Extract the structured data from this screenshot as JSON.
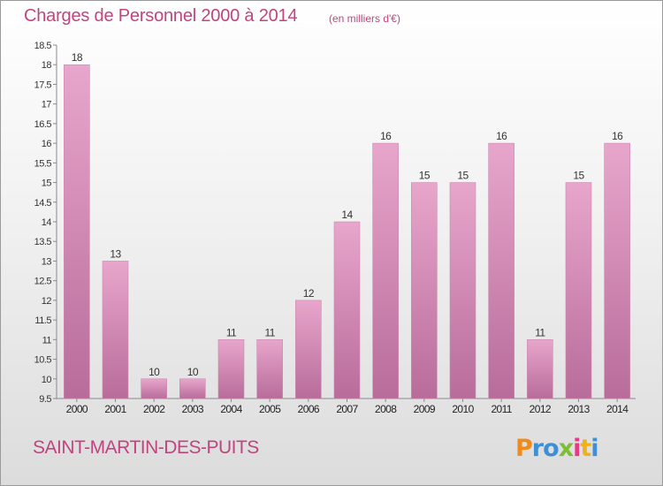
{
  "header": {
    "title": "Charges de Personnel 2000 à 2014",
    "subtitle": "(en milliers d'€)"
  },
  "footer": {
    "commune": "SAINT-MARTIN-DES-PUITS",
    "logo_text": "Proxiti"
  },
  "colors": {
    "accent": "#c0447f",
    "bar_top": "#e8a6cc",
    "bar_bottom": "#b86c9a"
  },
  "chart_data": {
    "type": "bar",
    "title": "Charges de Personnel 2000 à 2014",
    "subtitle": "(en milliers d'€)",
    "categories": [
      "2000",
      "2001",
      "2002",
      "2003",
      "2004",
      "2005",
      "2006",
      "2007",
      "2008",
      "2009",
      "2010",
      "2011",
      "2012",
      "2013",
      "2014"
    ],
    "values": [
      18,
      13,
      10,
      10,
      11,
      11,
      12,
      14,
      16,
      15,
      15,
      16,
      11,
      15,
      16
    ],
    "data_labels": [
      "18",
      "13",
      "10",
      "10",
      "11",
      "11",
      "12",
      "14",
      "16",
      "15",
      "15",
      "16",
      "11",
      "15",
      "16"
    ],
    "ylim": [
      9.5,
      18.5
    ],
    "yticks": [
      9.5,
      10,
      10.5,
      11,
      11.5,
      12,
      12.5,
      13,
      13.5,
      14,
      14.5,
      15,
      15.5,
      16,
      16.5,
      17,
      17.5,
      18,
      18.5
    ],
    "ytick_labels": [
      "9.5",
      "10",
      "10.5",
      "11",
      "11.5",
      "12",
      "12.5",
      "13",
      "13.5",
      "14",
      "14.5",
      "15",
      "15.5",
      "16",
      "16.5",
      "17",
      "17.5",
      "18",
      "18.5"
    ],
    "grid": false,
    "xlabel": "",
    "ylabel": ""
  }
}
